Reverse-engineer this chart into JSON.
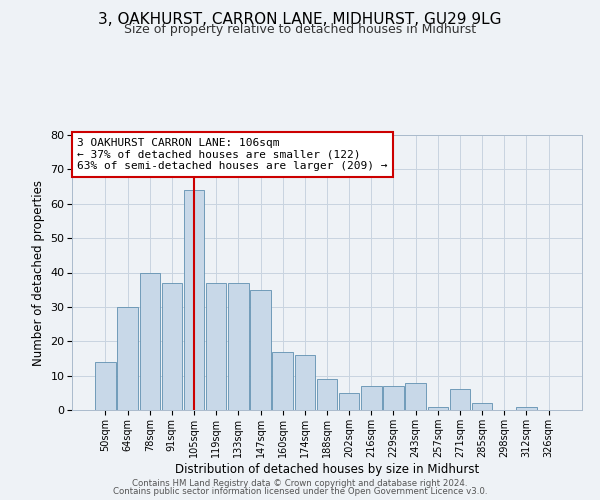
{
  "title": "3, OAKHURST, CARRON LANE, MIDHURST, GU29 9LG",
  "subtitle": "Size of property relative to detached houses in Midhurst",
  "xlabel": "Distribution of detached houses by size in Midhurst",
  "ylabel": "Number of detached properties",
  "bar_labels": [
    "50sqm",
    "64sqm",
    "78sqm",
    "91sqm",
    "105sqm",
    "119sqm",
    "133sqm",
    "147sqm",
    "160sqm",
    "174sqm",
    "188sqm",
    "202sqm",
    "216sqm",
    "229sqm",
    "243sqm",
    "257sqm",
    "271sqm",
    "285sqm",
    "298sqm",
    "312sqm",
    "326sqm"
  ],
  "bar_values": [
    14,
    30,
    40,
    37,
    64,
    37,
    37,
    35,
    17,
    16,
    9,
    5,
    7,
    7,
    8,
    1,
    6,
    2,
    0,
    1,
    0
  ],
  "bar_color": "#c8d8e8",
  "bar_edgecolor": "#6090b0",
  "vline_x_index": 4,
  "vline_color": "#cc0000",
  "annotation_text": "3 OAKHURST CARRON LANE: 106sqm\n← 37% of detached houses are smaller (122)\n63% of semi-detached houses are larger (209) →",
  "annotation_box_edgecolor": "#cc0000",
  "annotation_fontsize": 8.0,
  "ylim": [
    0,
    80
  ],
  "yticks": [
    0,
    10,
    20,
    30,
    40,
    50,
    60,
    70,
    80
  ],
  "grid_color": "#c8d4e0",
  "background_color": "#eef2f6",
  "footer_line1": "Contains HM Land Registry data © Crown copyright and database right 2024.",
  "footer_line2": "Contains public sector information licensed under the Open Government Licence v3.0.",
  "title_fontsize": 11,
  "subtitle_fontsize": 9
}
